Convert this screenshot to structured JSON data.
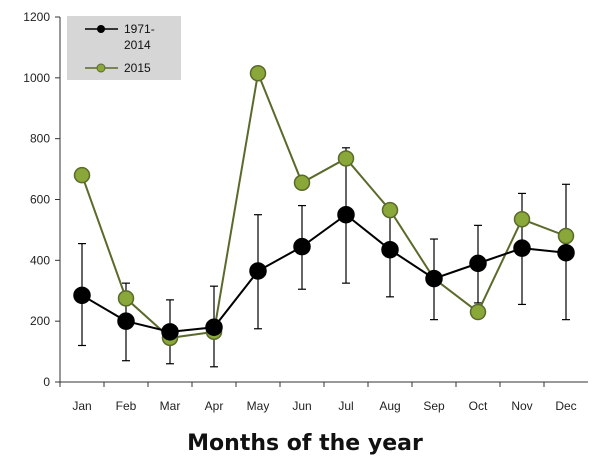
{
  "chart_data": {
    "type": "line",
    "xlabel": "Months of the year",
    "ylabel": "",
    "ylim": [
      0,
      1200
    ],
    "yticks": [
      0,
      200,
      400,
      600,
      800,
      1000,
      1200
    ],
    "grid": false,
    "legend_position": "top-left",
    "categories": [
      "Jan",
      "Feb",
      "Mar",
      "Apr",
      "May",
      "Jun",
      "Jul",
      "Aug",
      "Sep",
      "Oct",
      "Nov",
      "Dec"
    ],
    "series": [
      {
        "name": "1971-\n2014",
        "color": "#000000",
        "values": [
          285,
          200,
          165,
          180,
          365,
          445,
          550,
          435,
          340,
          390,
          440,
          425
        ],
        "error_low": [
          120,
          70,
          60,
          50,
          175,
          305,
          325,
          280,
          205,
          260,
          255,
          205
        ],
        "error_high": [
          455,
          325,
          270,
          315,
          550,
          580,
          770,
          545,
          470,
          515,
          620,
          650
        ]
      },
      {
        "name": "2015",
        "color": "#8aa83a",
        "line_color": "#5a6a2a",
        "values": [
          680,
          275,
          145,
          165,
          1015,
          655,
          735,
          565,
          340,
          230,
          535,
          480
        ]
      }
    ]
  }
}
